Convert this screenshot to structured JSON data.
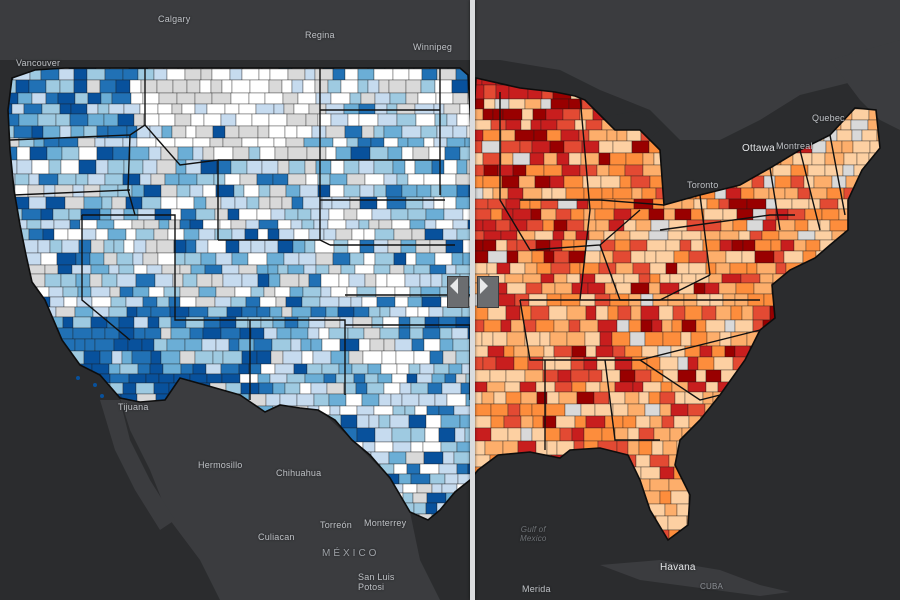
{
  "map": {
    "places": [
      {
        "name": "Calgary",
        "kind": "city"
      },
      {
        "name": "Regina",
        "kind": "city"
      },
      {
        "name": "Winnipeg",
        "kind": "city"
      },
      {
        "name": "Vancouver",
        "kind": "city"
      },
      {
        "name": "Ottawa",
        "kind": "big"
      },
      {
        "name": "Montreal",
        "kind": "city"
      },
      {
        "name": "Quebec",
        "kind": "city"
      },
      {
        "name": "Toronto",
        "kind": "city"
      },
      {
        "name": "Tijuana",
        "kind": "city"
      },
      {
        "name": "Hermosillo",
        "kind": "city"
      },
      {
        "name": "Chihuahua",
        "kind": "city"
      },
      {
        "name": "Torreón",
        "kind": "city"
      },
      {
        "name": "Monterrey",
        "kind": "city"
      },
      {
        "name": "Culiacan",
        "kind": "city"
      },
      {
        "name": "MÉXICO",
        "kind": "country"
      },
      {
        "name": "San Luis\nPotosi",
        "kind": "city"
      },
      {
        "name": "Havana",
        "kind": "big"
      },
      {
        "name": "CUBA",
        "kind": "island"
      },
      {
        "name": "Gulf of\nMexico",
        "kind": "water"
      },
      {
        "name": "Merida",
        "kind": "city"
      }
    ],
    "colors": {
      "background": "#2b2c2e",
      "land": "#3a3b3e",
      "left_palette": [
        "#ffffff",
        "#d9d9d9",
        "#c6dbef",
        "#9ecae1",
        "#6baed6",
        "#2171b5",
        "#08519c"
      ],
      "right_palette": [
        "#fdd0a2",
        "#fdae6b",
        "#fd8d3c",
        "#e34a33",
        "#c81e1e",
        "#990000",
        "#d9d9d9"
      ]
    }
  },
  "swipe": {
    "left_icon": "chevron-left-icon",
    "right_icon": "chevron-right-icon"
  }
}
